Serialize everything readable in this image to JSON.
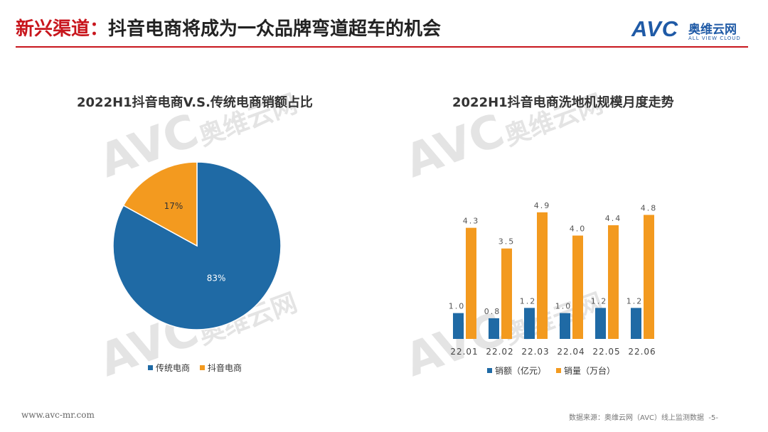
{
  "header": {
    "title_prefix": "新兴渠道：",
    "title_rest": "抖音电商将成为一众品牌弯道超车的机会",
    "logo_text": "AVC",
    "logo_cn": "奥维云网",
    "logo_en": "ALL VIEW CLOUD"
  },
  "colors": {
    "blue": "#1f6aa5",
    "orange": "#f39a1f",
    "red": "#c8161d"
  },
  "chart_data": [
    {
      "type": "pie",
      "title": "2022H1抖音电商V.S.传统电商销额占比",
      "slices": [
        {
          "name": "传统电商",
          "value": 83,
          "label": "83%"
        },
        {
          "name": "抖音电商",
          "value": 17,
          "label": "17%"
        }
      ],
      "legend_position": "bottom"
    },
    {
      "type": "bar",
      "title": "2022H1抖音电商洗地机规模月度走势",
      "categories": [
        "22.01",
        "22.02",
        "22.03",
        "22.04",
        "22.05",
        "22.06"
      ],
      "series": [
        {
          "name": "销额（亿元）",
          "values": [
            1.0,
            0.8,
            1.2,
            1.0,
            1.2,
            1.2
          ],
          "labels": [
            "1.0",
            "0.8",
            "1.2",
            "1.0",
            "1.2",
            "1.2"
          ]
        },
        {
          "name": "销量（万台）",
          "values": [
            4.3,
            3.5,
            4.9,
            4.0,
            4.4,
            4.8
          ],
          "labels": [
            "4.3",
            "3.5",
            "4.9",
            "4.0",
            "4.4",
            "4.8"
          ]
        }
      ],
      "ylim": [
        0,
        5.5
      ],
      "grid": false,
      "legend_position": "bottom"
    }
  ],
  "footer": {
    "website": "www.avc-mr.com",
    "source": "数据来源：奥维云网（AVC）线上监测数据",
    "page": "-5-"
  }
}
